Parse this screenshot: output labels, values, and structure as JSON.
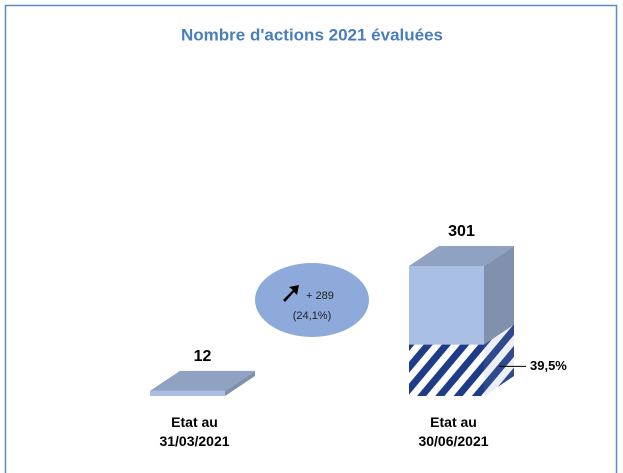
{
  "chart_data": {
    "type": "bar3d",
    "title": "Nombre d'actions 2021 évaluées",
    "categories": [
      "Etat au 31/03/2021",
      "Etat au 30/06/2021"
    ],
    "values": [
      12,
      301
    ],
    "color": "#a9bfe4",
    "hatch_color": "#1f3c88",
    "hatched_share": [
      null,
      39.5
    ],
    "hatched_share_labels": [
      null,
      "39,5%"
    ],
    "annotation": {
      "text": "+ 289",
      "subtext": "(24,1%)"
    }
  }
}
